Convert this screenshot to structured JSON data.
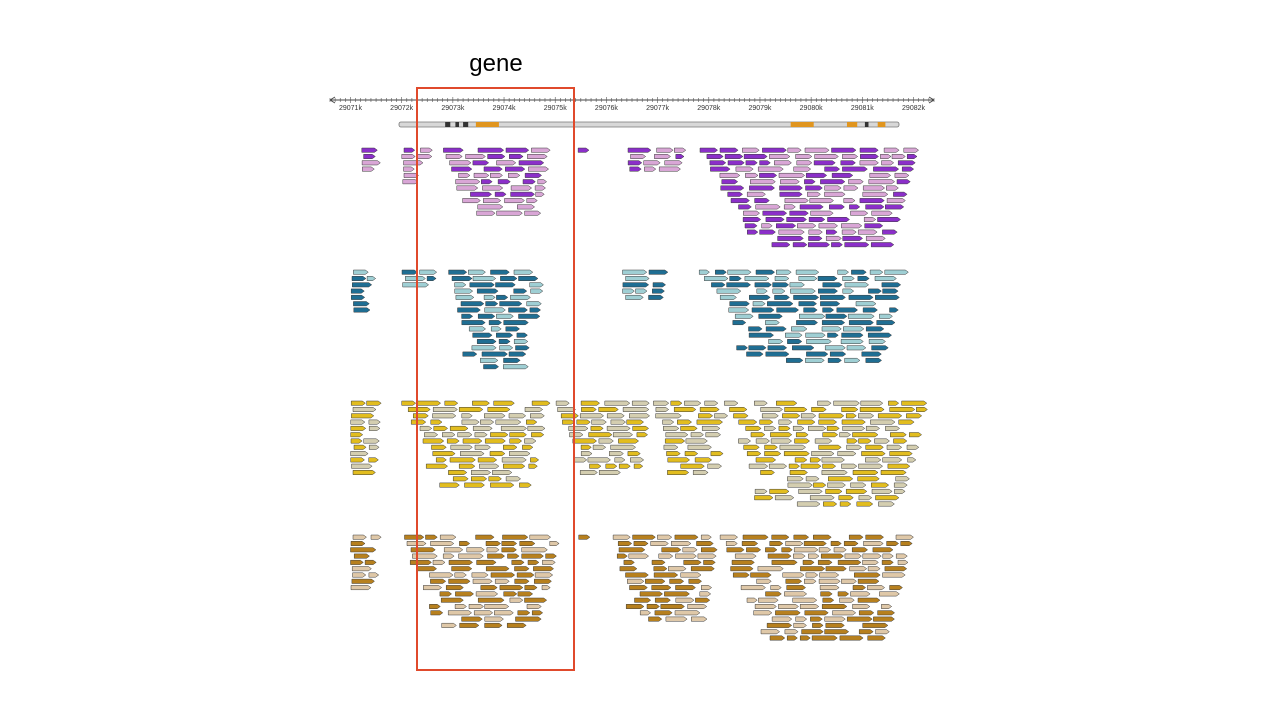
{
  "annotation": {
    "label": "gene",
    "box_color": "#e04a2c"
  },
  "ruler": {
    "ticks": [
      "29071k",
      "29072k",
      "29073k",
      "29074k",
      "29075k",
      "29076k",
      "29077k",
      "29078k",
      "29079k",
      "29080k",
      "29081k",
      "29082k"
    ],
    "start_kb": 29070.6,
    "end_kb": 29082.4
  },
  "gene_model": {
    "exons_kb": [
      {
        "start": 29072.85,
        "end": 29072.95
      },
      {
        "start": 29073.05,
        "end": 29073.12
      },
      {
        "start": 29073.2,
        "end": 29073.3
      },
      {
        "start": 29073.45,
        "end": 29073.9
      },
      {
        "start": 29079.6,
        "end": 29080.05
      },
      {
        "start": 29080.7,
        "end": 29080.9
      },
      {
        "start": 29081.05,
        "end": 29081.12
      },
      {
        "start": 29081.3,
        "end": 29081.45
      }
    ]
  },
  "tracks": [
    {
      "name": "purple",
      "dark": "#8b2fc9",
      "light": "#d9a6d6",
      "seed": 11,
      "min_kb": 29071.2,
      "max_kb": 29082.1,
      "clusters": [
        {
          "start": 29071.2,
          "end": 29071.7,
          "rows": 4
        },
        {
          "start": 29072.0,
          "end": 29072.6,
          "rows": 6
        },
        {
          "start": 29072.8,
          "end": 29074.95,
          "rows": 11
        },
        {
          "start": 29075.4,
          "end": 29075.8,
          "rows": 1
        },
        {
          "start": 29076.4,
          "end": 29077.55,
          "rows": 4
        },
        {
          "start": 29077.8,
          "end": 29082.1,
          "rows": 16
        }
      ]
    },
    {
      "name": "teal",
      "dark": "#1f6e93",
      "light": "#9fcfd4",
      "seed": 27,
      "min_kb": 29071.0,
      "max_kb": 29081.9,
      "clusters": [
        {
          "start": 29071.0,
          "end": 29071.5,
          "rows": 7
        },
        {
          "start": 29072.0,
          "end": 29072.7,
          "rows": 3
        },
        {
          "start": 29072.9,
          "end": 29074.8,
          "rows": 16
        },
        {
          "start": 29076.3,
          "end": 29077.2,
          "rows": 5
        },
        {
          "start": 29077.8,
          "end": 29081.9,
          "rows": 15
        }
      ]
    },
    {
      "name": "yellow",
      "dark": "#e2bd1f",
      "light": "#d4ceb0",
      "seed": 43,
      "min_kb": 29071.0,
      "max_kb": 29082.3,
      "clusters": [
        {
          "start": 29071.0,
          "end": 29071.6,
          "rows": 12
        },
        {
          "start": 29072.0,
          "end": 29074.9,
          "rows": 14
        },
        {
          "start": 29075.0,
          "end": 29076.9,
          "rows": 12
        },
        {
          "start": 29076.9,
          "end": 29078.4,
          "rows": 12
        },
        {
          "start": 29078.3,
          "end": 29082.3,
          "rows": 17
        }
      ]
    },
    {
      "name": "brown",
      "dark": "#b7801e",
      "light": "#dfc8a8",
      "seed": 59,
      "min_kb": 29071.0,
      "max_kb": 29082.0,
      "clusters": [
        {
          "start": 29071.0,
          "end": 29071.6,
          "rows": 9
        },
        {
          "start": 29072.0,
          "end": 29075.1,
          "rows": 15
        },
        {
          "start": 29075.4,
          "end": 29075.9,
          "rows": 1
        },
        {
          "start": 29076.1,
          "end": 29078.2,
          "rows": 14
        },
        {
          "start": 29078.2,
          "end": 29082.0,
          "rows": 17
        }
      ]
    }
  ]
}
